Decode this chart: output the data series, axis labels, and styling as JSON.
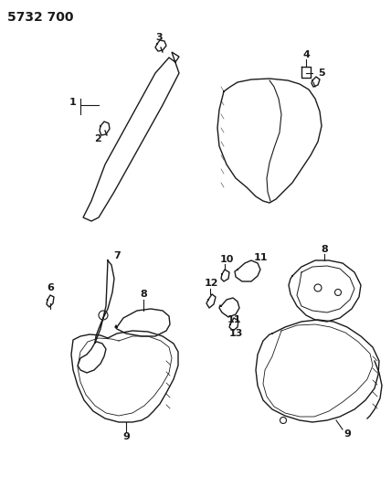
{
  "title": "5732 700",
  "background_color": "#ffffff",
  "line_color": "#1a1a1a",
  "figsize": [
    4.28,
    5.33
  ],
  "dpi": 100
}
